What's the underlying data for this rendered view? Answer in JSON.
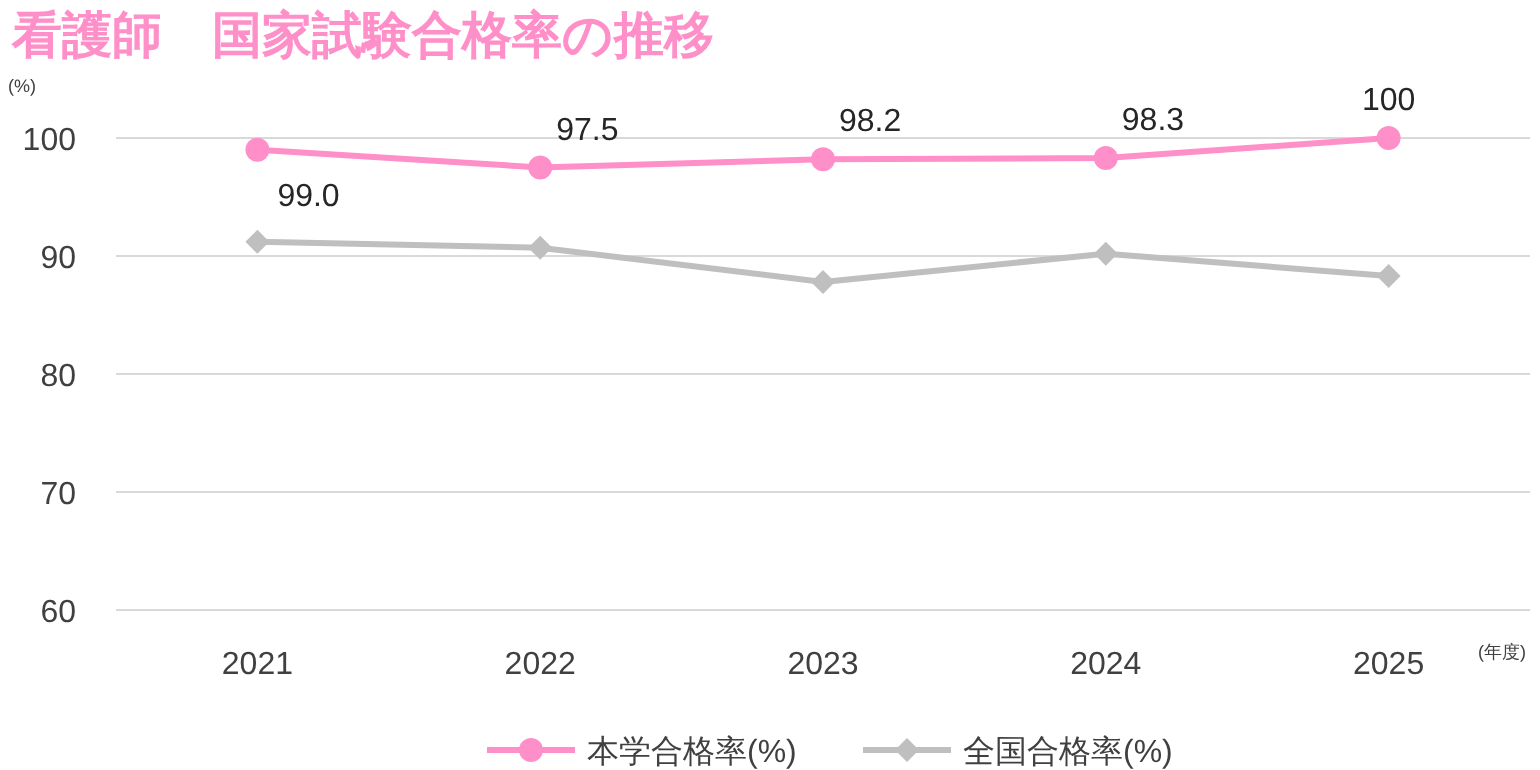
{
  "chart_data": {
    "type": "line",
    "title": "看護師　国家試験合格率の推移",
    "ylabel": "(%)",
    "xlabel": "(年度)",
    "categories": [
      "2021",
      "2022",
      "2023",
      "2024",
      "2025"
    ],
    "series": [
      {
        "name": "本学合格率(%)",
        "color": "#ff8fc8",
        "marker": "circle",
        "values": [
          99.0,
          97.5,
          98.2,
          98.3,
          100
        ],
        "value_labels": [
          "99.0",
          "97.5",
          "98.2",
          "98.3",
          "100"
        ]
      },
      {
        "name": "全国合格率(%)",
        "color": "#bfbfbf",
        "marker": "diamond",
        "values": [
          91.2,
          90.7,
          87.8,
          90.2,
          88.3
        ]
      }
    ],
    "ylim": [
      60,
      100
    ],
    "yticks": [
      60,
      70,
      80,
      90,
      100
    ],
    "grid": "y",
    "legend": "bottom"
  }
}
